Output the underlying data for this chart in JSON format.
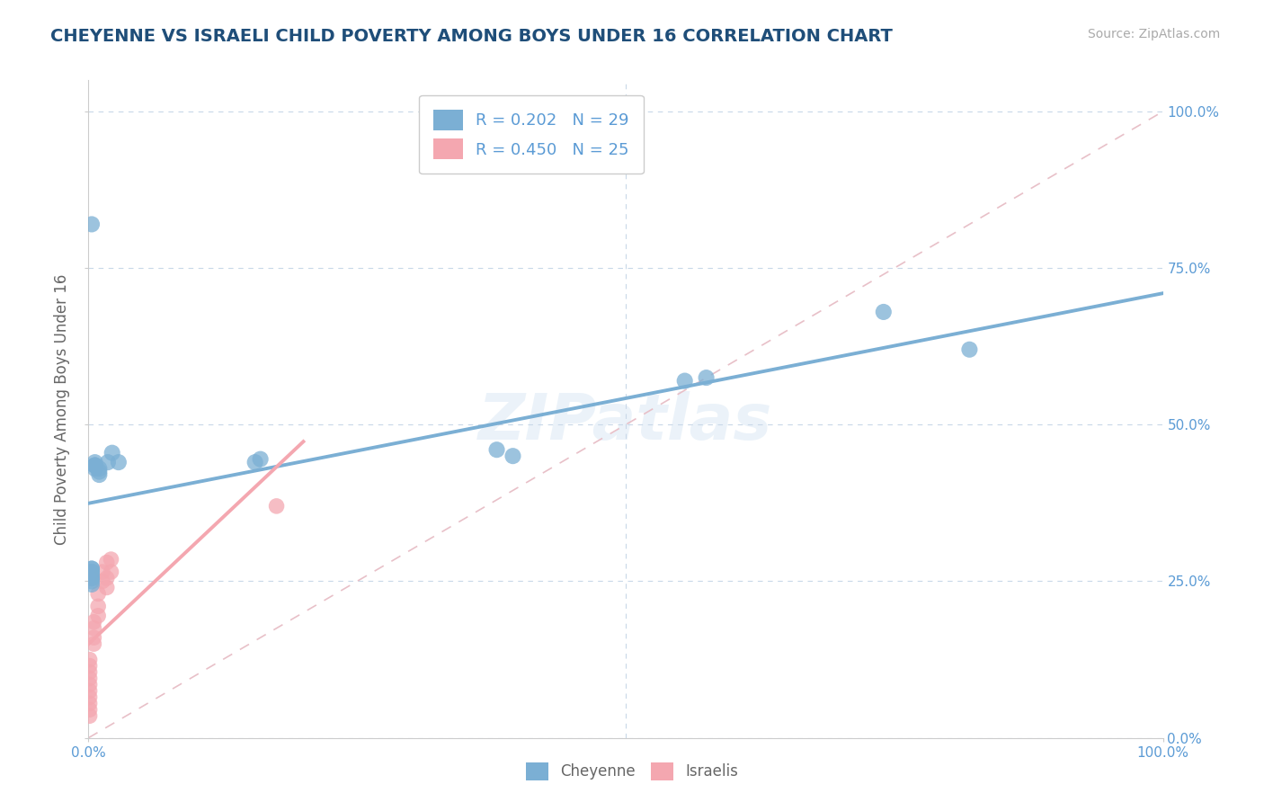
{
  "title": "CHEYENNE VS ISRAELI CHILD POVERTY AMONG BOYS UNDER 16 CORRELATION CHART",
  "source": "Source: ZipAtlas.com",
  "ylabel": "Child Poverty Among Boys Under 16",
  "cheyenne_color": "#7bafd4",
  "israeli_color": "#f4a7b0",
  "cheyenne_r": 0.202,
  "cheyenne_n": 29,
  "israeli_r": 0.45,
  "israeli_n": 25,
  "background_color": "#ffffff",
  "grid_color": "#c8d8e8",
  "watermark": "ZIPatlas",
  "cheyenne_x": [
    0.003,
    0.003,
    0.003,
    0.003,
    0.003,
    0.003,
    0.003,
    0.003,
    0.003,
    0.006,
    0.006,
    0.006,
    0.006,
    0.006,
    0.01,
    0.01,
    0.01,
    0.018,
    0.022,
    0.028,
    0.155,
    0.16,
    0.38,
    0.395,
    0.555,
    0.575,
    0.74,
    0.82,
    0.003
  ],
  "cheyenne_y": [
    0.27,
    0.27,
    0.265,
    0.265,
    0.26,
    0.255,
    0.25,
    0.245,
    0.255,
    0.43,
    0.435,
    0.44,
    0.435,
    0.435,
    0.42,
    0.425,
    0.43,
    0.44,
    0.455,
    0.44,
    0.44,
    0.445,
    0.46,
    0.45,
    0.57,
    0.575,
    0.68,
    0.62,
    0.82
  ],
  "israeli_x": [
    0.001,
    0.001,
    0.001,
    0.001,
    0.001,
    0.001,
    0.001,
    0.001,
    0.001,
    0.001,
    0.005,
    0.005,
    0.005,
    0.005,
    0.009,
    0.009,
    0.009,
    0.013,
    0.013,
    0.017,
    0.017,
    0.017,
    0.021,
    0.021,
    0.175
  ],
  "israeli_y": [
    0.035,
    0.045,
    0.055,
    0.065,
    0.075,
    0.085,
    0.095,
    0.105,
    0.115,
    0.125,
    0.15,
    0.16,
    0.175,
    0.185,
    0.195,
    0.21,
    0.23,
    0.25,
    0.265,
    0.24,
    0.255,
    0.28,
    0.265,
    0.285,
    0.37
  ],
  "xlim": [
    0.0,
    1.0
  ],
  "ylim": [
    0.0,
    1.05
  ],
  "xticks": [
    0.0,
    1.0
  ],
  "yticks": [
    0.0,
    0.25,
    0.5,
    0.75,
    1.0
  ],
  "xticklabels": [
    "0.0%",
    "100.0%"
  ],
  "right_yticklabels": [
    "0.0%",
    "25.0%",
    "50.0%",
    "75.0%",
    "100.0%"
  ]
}
